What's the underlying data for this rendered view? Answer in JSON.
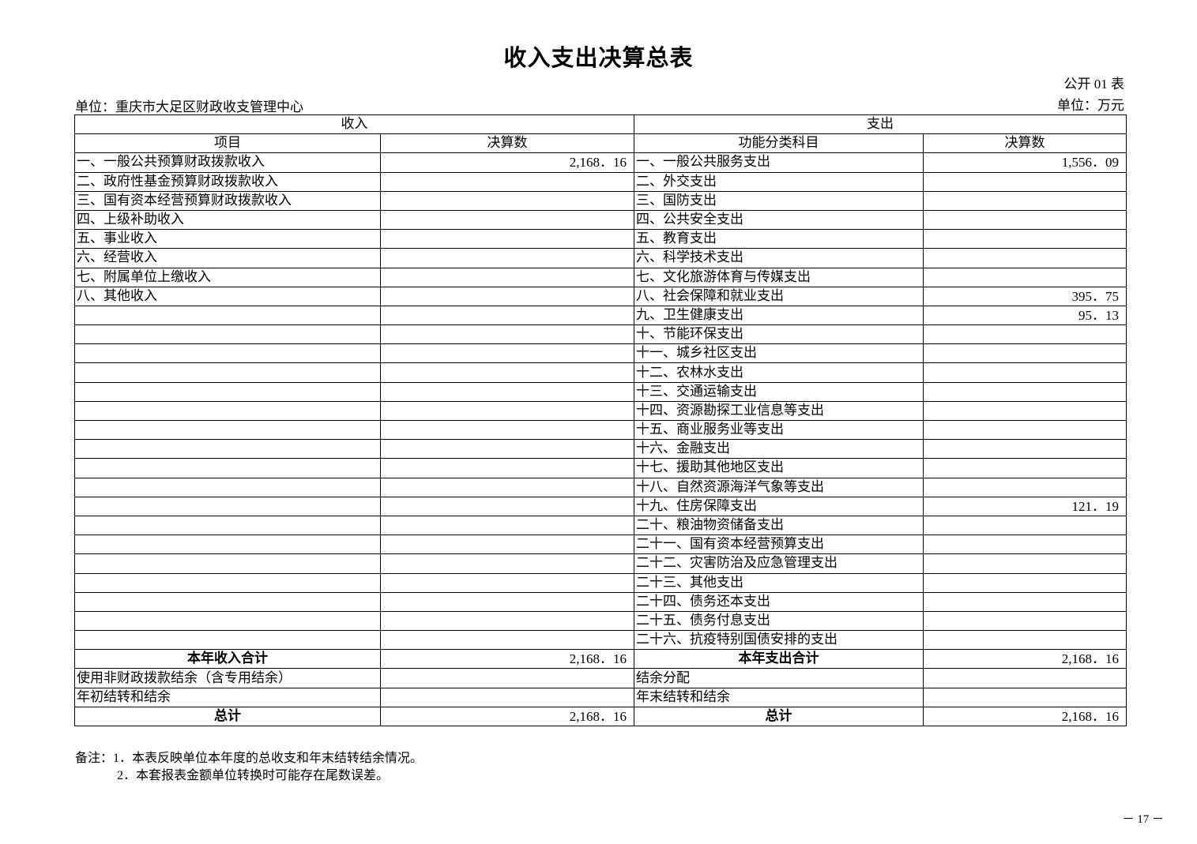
{
  "title": "收入支出决算总表",
  "form_no": "公开 01 表",
  "unit_name": "单位：重庆市大足区财政收支管理中心",
  "unit_money": "单位：万元",
  "headers": {
    "income": "收入",
    "expense": "支出",
    "income_item": "项目",
    "income_amount": "决算数",
    "expense_item": "功能分类科目",
    "expense_amount": "决算数"
  },
  "rows": [
    {
      "income_item": "一、一般公共预算财政拨款收入",
      "income_amount": "2,168．16",
      "expense_item": "一、一般公共服务支出",
      "expense_amount": "1,556．09"
    },
    {
      "income_item": "二、政府性基金预算财政拨款收入",
      "income_amount": "",
      "expense_item": "二、外交支出",
      "expense_amount": ""
    },
    {
      "income_item": "三、国有资本经营预算财政拨款收入",
      "income_amount": "",
      "expense_item": "三、国防支出",
      "expense_amount": ""
    },
    {
      "income_item": "四、上级补助收入",
      "income_amount": "",
      "expense_item": "四、公共安全支出",
      "expense_amount": ""
    },
    {
      "income_item": "五、事业收入",
      "income_amount": "",
      "expense_item": "五、教育支出",
      "expense_amount": ""
    },
    {
      "income_item": "六、经营收入",
      "income_amount": "",
      "expense_item": "六、科学技术支出",
      "expense_amount": ""
    },
    {
      "income_item": "七、附属单位上缴收入",
      "income_amount": "",
      "expense_item": "七、文化旅游体育与传媒支出",
      "expense_amount": ""
    },
    {
      "income_item": "八、其他收入",
      "income_amount": "",
      "expense_item": "八、社会保障和就业支出",
      "expense_amount": "395．75"
    },
    {
      "income_item": "",
      "income_amount": "",
      "expense_item": "九、卫生健康支出",
      "expense_amount": "95．13"
    },
    {
      "income_item": "",
      "income_amount": "",
      "expense_item": "十、节能环保支出",
      "expense_amount": ""
    },
    {
      "income_item": "",
      "income_amount": "",
      "expense_item": "十一、城乡社区支出",
      "expense_amount": ""
    },
    {
      "income_item": "",
      "income_amount": "",
      "expense_item": "十二、农林水支出",
      "expense_amount": ""
    },
    {
      "income_item": "",
      "income_amount": "",
      "expense_item": "十三、交通运输支出",
      "expense_amount": ""
    },
    {
      "income_item": "",
      "income_amount": "",
      "expense_item": "十四、资源勘探工业信息等支出",
      "expense_amount": ""
    },
    {
      "income_item": "",
      "income_amount": "",
      "expense_item": "十五、商业服务业等支出",
      "expense_amount": ""
    },
    {
      "income_item": "",
      "income_amount": "",
      "expense_item": "十六、金融支出",
      "expense_amount": ""
    },
    {
      "income_item": "",
      "income_amount": "",
      "expense_item": "十七、援助其他地区支出",
      "expense_amount": ""
    },
    {
      "income_item": "",
      "income_amount": "",
      "expense_item": "十八、自然资源海洋气象等支出",
      "expense_amount": ""
    },
    {
      "income_item": "",
      "income_amount": "",
      "expense_item": "十九、住房保障支出",
      "expense_amount": "121．19"
    },
    {
      "income_item": "",
      "income_amount": "",
      "expense_item": "二十、粮油物资储备支出",
      "expense_amount": ""
    },
    {
      "income_item": "",
      "income_amount": "",
      "expense_item": "二十一、国有资本经营预算支出",
      "expense_amount": ""
    },
    {
      "income_item": "",
      "income_amount": "",
      "expense_item": "二十二、灾害防治及应急管理支出",
      "expense_amount": ""
    },
    {
      "income_item": "",
      "income_amount": "",
      "expense_item": "二十三、其他支出",
      "expense_amount": ""
    },
    {
      "income_item": "",
      "income_amount": "",
      "expense_item": "二十四、债务还本支出",
      "expense_amount": ""
    },
    {
      "income_item": "",
      "income_amount": "",
      "expense_item": "二十五、债务付息支出",
      "expense_amount": ""
    },
    {
      "income_item": "",
      "income_amount": "",
      "expense_item": "二十六、抗疫特别国债安排的支出",
      "expense_amount": ""
    }
  ],
  "summary": [
    {
      "income_item": "本年收入合计",
      "income_amount": "2,168．16",
      "expense_item": "本年支出合计",
      "expense_amount": "2,168．16",
      "center": true
    },
    {
      "income_item": "使用非财政拨款结余（含专用结余）",
      "income_amount": "",
      "expense_item": "结余分配",
      "expense_amount": "",
      "center": false
    },
    {
      "income_item": "年初结转和结余",
      "income_amount": "",
      "expense_item": "年末结转和结余",
      "expense_amount": "",
      "center": false
    },
    {
      "income_item": "总计",
      "income_amount": "2,168．16",
      "expense_item": "总计",
      "expense_amount": "2,168．16",
      "center": true
    }
  ],
  "notes": [
    "备注：1．本表反映单位本年度的总收支和年末结转结余情况。",
    "2．本套报表金额单位转换时可能存在尾数误差。"
  ],
  "page_number": "－ 17 －"
}
